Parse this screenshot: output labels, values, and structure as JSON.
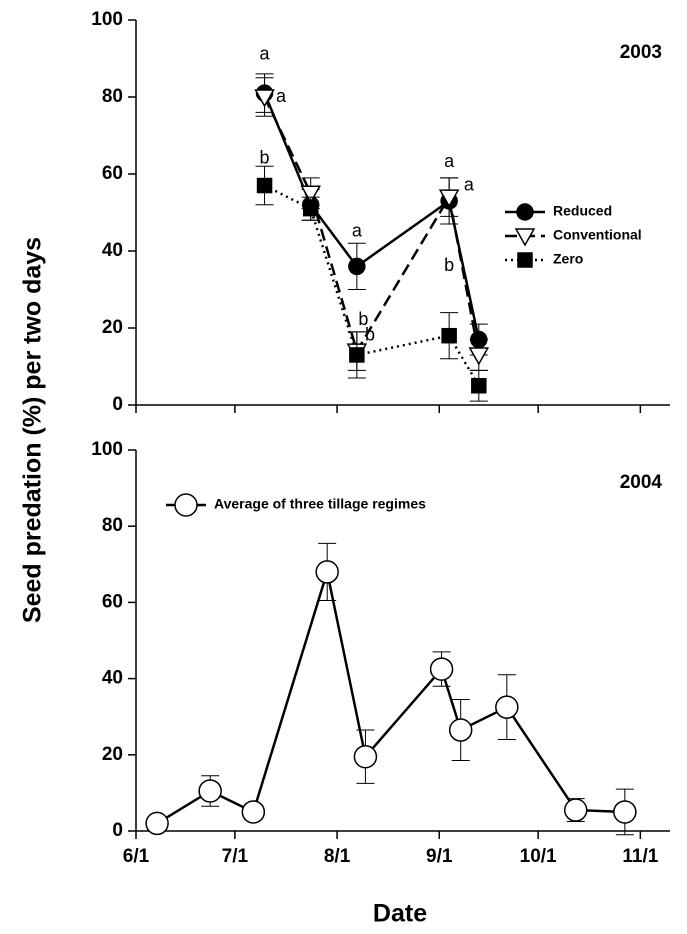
{
  "chart_data": [
    {
      "type": "line",
      "title": "2003",
      "ylabel": "Seed predation (%) per two days",
      "x": [
        39,
        53,
        67,
        95,
        104
      ],
      "series": [
        {
          "name": "Reduced",
          "color": "#000000",
          "fill": "#000000",
          "marker": "circle",
          "dash": "solid",
          "values": [
            81,
            52,
            36,
            53,
            17
          ],
          "errors": [
            5,
            4,
            6,
            6,
            4
          ]
        },
        {
          "name": "Conventional",
          "color": "#000000",
          "fill": "#ffffff",
          "marker": "triangle-down",
          "dash": "dashed",
          "values": [
            80,
            55,
            14,
            54,
            13
          ],
          "errors": [
            5,
            4,
            5,
            5,
            4
          ]
        },
        {
          "name": "Zero",
          "color": "#000000",
          "fill": "#000000",
          "marker": "square",
          "dash": "dotted",
          "values": [
            57,
            51,
            13,
            18,
            5
          ],
          "errors": [
            5,
            3,
            6,
            6,
            4
          ]
        }
      ],
      "annotations": [
        {
          "text": "a",
          "x": 39,
          "y": 91
        },
        {
          "text": "a",
          "x": 44,
          "y": 80
        },
        {
          "text": "b",
          "x": 39,
          "y": 64
        },
        {
          "text": "a",
          "x": 67,
          "y": 45
        },
        {
          "text": "b",
          "x": 69,
          "y": 22
        },
        {
          "text": "b",
          "x": 71,
          "y": 18
        },
        {
          "text": "a",
          "x": 95,
          "y": 63
        },
        {
          "text": "a",
          "x": 101,
          "y": 57
        },
        {
          "text": "b",
          "x": 95,
          "y": 36
        }
      ],
      "xlim": [
        0,
        162
      ],
      "xticks": [
        0,
        30,
        61,
        92,
        122,
        153
      ],
      "ylim": [
        0,
        100
      ],
      "yticks": [
        0,
        20,
        40,
        60,
        80,
        100
      ],
      "legend": "right"
    },
    {
      "type": "line",
      "title": "2004",
      "xlabel": "Date",
      "x": [
        6.4,
        22.5,
        35.6,
        58,
        69.6,
        92.7,
        98.5,
        112.5,
        133.4,
        148.3
      ],
      "series": [
        {
          "name": "Average of three tillage regimes",
          "color": "#000000",
          "fill": "#ffffff",
          "marker": "circle",
          "dash": "solid",
          "values": [
            2,
            10.5,
            5,
            68,
            19.5,
            42.5,
            26.5,
            32.5,
            5.5,
            5
          ],
          "errors": [
            0,
            4,
            2,
            7.5,
            7,
            4.5,
            8,
            8.5,
            3,
            6
          ]
        }
      ],
      "xlim": [
        0,
        162
      ],
      "xticks": [
        {
          "value": 0,
          "label": "6/1"
        },
        {
          "value": 30,
          "label": "7/1"
        },
        {
          "value": 61,
          "label": "8/1"
        },
        {
          "value": 92,
          "label": "9/1"
        },
        {
          "value": 122,
          "label": "10/1"
        },
        {
          "value": 153,
          "label": "11/1"
        }
      ],
      "ylim": [
        0,
        100
      ],
      "yticks": [
        0,
        20,
        40,
        60,
        80,
        100
      ],
      "legend": "upper left"
    }
  ]
}
